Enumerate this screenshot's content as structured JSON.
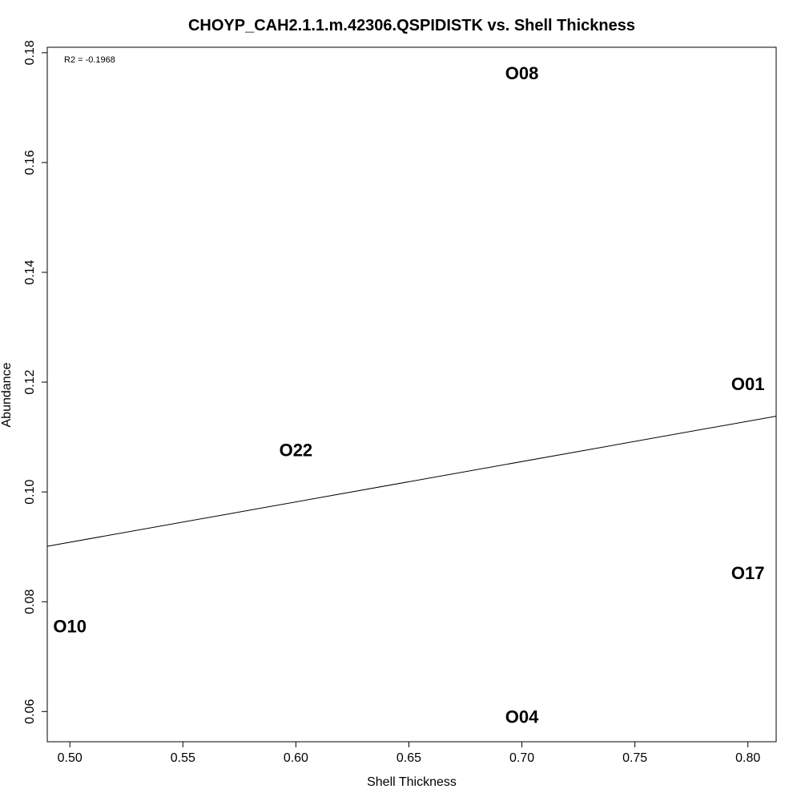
{
  "chart_data": {
    "type": "scatter",
    "title": "CHOYP_CAH2.1.1.m.42306.QSPIDISTK vs. Shell Thickness",
    "xlabel": "Shell Thickness",
    "ylabel": "Abundance",
    "xlim": [
      0.49,
      0.8125
    ],
    "ylim": [
      0.0545,
      0.181
    ],
    "x_ticks": [
      0.5,
      0.55,
      0.6,
      0.65,
      0.7,
      0.75,
      0.8
    ],
    "x_tick_labels": [
      "0.50",
      "0.55",
      "0.60",
      "0.65",
      "0.70",
      "0.75",
      "0.80"
    ],
    "y_ticks": [
      0.06,
      0.08,
      0.1,
      0.12,
      0.14,
      0.16,
      0.18
    ],
    "y_tick_labels": [
      "0.06",
      "0.08",
      "0.10",
      "0.12",
      "0.14",
      "0.16",
      "0.18"
    ],
    "grid": false,
    "annotation": "R2 = -0.1968",
    "points": [
      {
        "label": "O08",
        "x": 0.7,
        "y": 0.1763
      },
      {
        "label": "O01",
        "x": 0.8,
        "y": 0.1197
      },
      {
        "label": "O22",
        "x": 0.6,
        "y": 0.1077
      },
      {
        "label": "O17",
        "x": 0.8,
        "y": 0.0853
      },
      {
        "label": "O10",
        "x": 0.5,
        "y": 0.0756
      },
      {
        "label": "O04",
        "x": 0.7,
        "y": 0.0591
      }
    ],
    "fit_line": {
      "x": [
        0.49,
        0.8125
      ],
      "y": [
        0.0901,
        0.1138
      ]
    }
  }
}
